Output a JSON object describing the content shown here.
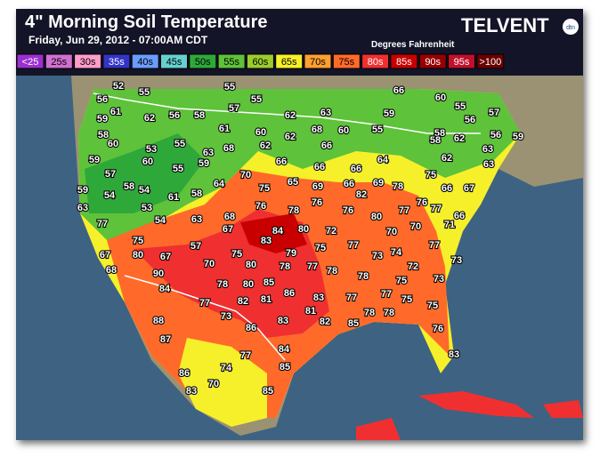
{
  "header": {
    "title": "4\" Morning Soil Temperature",
    "subtitle": "Friday, Jun 29, 2012 - 07:00AM CDT",
    "units": "Degrees Fahrenheit",
    "logo": "TELVENT",
    "logo_badge": "dtn"
  },
  "legend": [
    {
      "label": "<25",
      "color": "#9b30d0"
    },
    {
      "label": "25s",
      "color": "#d070d0"
    },
    {
      "label": "30s",
      "color": "#ff9ccc"
    },
    {
      "label": "35s",
      "color": "#3434c8"
    },
    {
      "label": "40s",
      "color": "#6a9cff"
    },
    {
      "label": "45s",
      "color": "#66d0d0"
    },
    {
      "label": "50s",
      "color": "#2fa83a"
    },
    {
      "label": "55s",
      "color": "#5ec23a"
    },
    {
      "label": "60s",
      "color": "#9ccc2c"
    },
    {
      "label": "65s",
      "color": "#f5f02a"
    },
    {
      "label": "70s",
      "color": "#ffa030"
    },
    {
      "label": "75s",
      "color": "#ff6a2a"
    },
    {
      "label": "80s",
      "color": "#f03030"
    },
    {
      "label": "85s",
      "color": "#c80000"
    },
    {
      "label": "90s",
      "color": "#960000"
    },
    {
      "label": "95s",
      "color": "#c0102c"
    },
    {
      "label": ">100",
      "color": "#6a0000"
    }
  ],
  "stations": [
    52,
    55,
    55,
    66,
    56,
    55,
    57,
    60,
    55,
    57,
    61,
    59,
    62,
    56,
    58,
    62,
    63,
    59,
    56,
    58,
    61,
    60,
    68,
    60,
    55,
    58,
    62,
    56,
    59,
    60,
    55,
    53,
    63,
    68,
    62,
    62,
    66,
    58,
    59,
    60,
    59,
    66,
    66,
    66,
    64,
    62,
    63,
    63,
    55,
    57,
    58,
    54,
    70,
    64,
    75,
    65,
    69,
    66,
    69,
    75,
    78,
    59,
    54,
    61,
    58,
    82,
    66,
    67,
    63,
    53,
    76,
    78,
    76,
    76,
    77,
    70,
    76,
    66,
    77,
    77,
    54,
    63,
    68,
    80,
    71,
    67,
    80,
    72,
    70,
    84,
    75,
    83,
    57,
    75,
    77,
    77,
    67,
    80,
    75,
    79,
    73,
    74,
    67,
    70,
    80,
    78,
    77,
    78,
    72,
    73,
    68,
    90,
    78,
    75,
    73,
    84,
    78,
    80,
    85,
    86,
    83,
    77,
    77,
    75,
    77,
    82,
    81,
    81,
    75,
    88,
    73,
    83,
    82,
    85,
    78,
    78,
    86,
    76,
    87,
    84,
    77,
    83,
    85,
    74,
    86,
    70,
    83,
    85
  ]
}
